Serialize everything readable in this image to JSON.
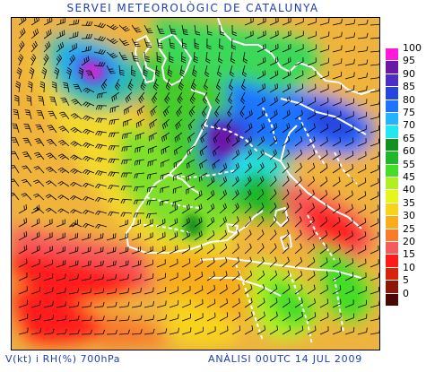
{
  "title": "SERVEI METEOROLÒGIC DE CATALUNYA",
  "footer": {
    "variables": "V(kt) i RH(%) 700hPa",
    "analysis": "ANÀLISI 00UTC 14 JUL 2009"
  },
  "legend": {
    "levels": [
      {
        "label": "100",
        "color": "#ff1ad9"
      },
      {
        "label": "95",
        "color": "#6a18a8"
      },
      {
        "label": "90",
        "color": "#4b2fc4"
      },
      {
        "label": "85",
        "color": "#2544e0"
      },
      {
        "label": "80",
        "color": "#1e74ff"
      },
      {
        "label": "75",
        "color": "#24b4ff"
      },
      {
        "label": "70",
        "color": "#22e6f0"
      },
      {
        "label": "65",
        "color": "#13911e"
      },
      {
        "label": "60",
        "color": "#1fb828"
      },
      {
        "label": "55",
        "color": "#44dd28"
      },
      {
        "label": "45",
        "color": "#aef020"
      },
      {
        "label": "40",
        "color": "#e6f51a"
      },
      {
        "label": "35",
        "color": "#f8d31a"
      },
      {
        "label": "30",
        "color": "#f7ad1c"
      },
      {
        "label": "25",
        "color": "#f77c2e"
      },
      {
        "label": "20",
        "color": "#f55b5b"
      },
      {
        "label": "15",
        "color": "#ff1a1a"
      },
      {
        "label": "10",
        "color": "#d8220c"
      },
      {
        "label": "5",
        "color": "#8e1606"
      },
      {
        "label": "0",
        "color": "#4a0804"
      }
    ]
  },
  "colors": {
    "title_text": "#1f3fb0",
    "coastline": "#ffffff",
    "wind_barbs": "#000000"
  }
}
